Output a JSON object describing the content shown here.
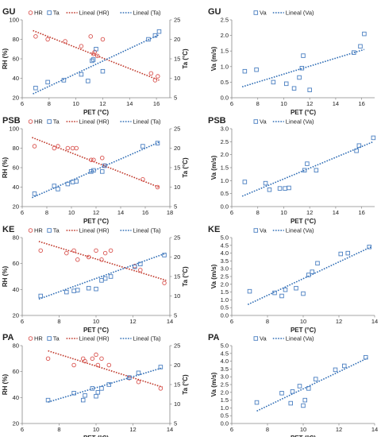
{
  "colors": {
    "hr": "#d9534f",
    "ta": "#4a7fc1",
    "va": "#4a7fc1",
    "trend": "#2f6db5",
    "hr_trend": "#c0392b"
  },
  "chart_data": [
    {
      "type": "scatter",
      "panel": "GU-left",
      "title": "GU",
      "xlabel": "PET (°C)",
      "ylabel": "RH (%)",
      "y2label": "Ta (°C)",
      "xlim": [
        6,
        17
      ],
      "ylim": [
        20,
        100
      ],
      "y2lim": [
        5,
        25
      ],
      "xticks": [
        6,
        8,
        10,
        12,
        14,
        16
      ],
      "yticks": [
        20,
        40,
        60,
        80,
        100
      ],
      "y2ticks": [
        5,
        10,
        15,
        20,
        25
      ],
      "legend": [
        "HR",
        "Ta",
        "Lineal (HR)",
        "Lineal (Ta)"
      ],
      "series": [
        {
          "name": "HR",
          "axis": "left",
          "marker": "circle",
          "x": [
            7.0,
            7.9,
            9.2,
            10.4,
            11.1,
            11.3,
            11.4,
            11.6,
            12.0,
            15.6,
            15.9,
            16.1
          ],
          "y": [
            83,
            80,
            78,
            73,
            83,
            65,
            67,
            63,
            80,
            45,
            38,
            42
          ]
        },
        {
          "name": "Ta",
          "axis": "right",
          "marker": "square",
          "x": [
            7.0,
            7.9,
            9.1,
            10.4,
            10.9,
            11.2,
            11.3,
            11.5,
            12.0,
            15.4,
            15.9,
            16.2
          ],
          "y": [
            7.5,
            9.0,
            9.5,
            11.0,
            9.3,
            14.5,
            14.8,
            17.5,
            11.8,
            20.0,
            21.0,
            22.0
          ]
        }
      ],
      "trends": [
        {
          "name": "Lineal (HR)",
          "axis": "left",
          "x": [
            6.8,
            16.2
          ],
          "y": [
            89,
            38
          ]
        },
        {
          "name": "Lineal (Ta)",
          "axis": "right",
          "x": [
            6.8,
            16.2
          ],
          "y": [
            6.0,
            21.2
          ]
        }
      ]
    },
    {
      "type": "scatter",
      "panel": "GU-right",
      "title": "GU",
      "xlabel": "PET (°C)",
      "ylabel": "Va (m/s)",
      "xlim": [
        6,
        17
      ],
      "ylim": [
        0,
        2.5
      ],
      "xticks": [
        6,
        8,
        10,
        12,
        14,
        16
      ],
      "yticks": [
        0.0,
        0.5,
        1.0,
        1.5,
        2.0,
        2.5
      ],
      "legend": [
        "Va",
        "Lineal (Va)"
      ],
      "series": [
        {
          "name": "Va",
          "axis": "left",
          "marker": "square",
          "x": [
            7.0,
            7.9,
            9.2,
            10.2,
            10.8,
            11.2,
            11.4,
            11.5,
            12.0,
            15.4,
            15.9,
            16.2
          ],
          "y": [
            0.85,
            0.9,
            0.5,
            0.45,
            0.3,
            0.65,
            0.95,
            1.35,
            0.25,
            1.45,
            1.65,
            2.05
          ]
        }
      ],
      "trends": [
        {
          "name": "Lineal (Va)",
          "axis": "left",
          "x": [
            6.8,
            16.2
          ],
          "y": [
            0.35,
            1.55
          ]
        }
      ]
    },
    {
      "type": "scatter",
      "panel": "PSB-left",
      "title": "PSB",
      "xlabel": "PET (°C)",
      "ylabel": "RH (%)",
      "y2label": "Ta (°C)",
      "xlim": [
        6,
        18
      ],
      "ylim": [
        20,
        100
      ],
      "y2lim": [
        5,
        25
      ],
      "xticks": [
        6,
        8,
        10,
        12,
        14,
        16,
        18
      ],
      "yticks": [
        20,
        40,
        60,
        80,
        100
      ],
      "y2ticks": [
        5,
        10,
        15,
        20,
        25
      ],
      "legend": [
        "HR",
        "Ta",
        "Lineal (HR)",
        "Lineal (Ta)"
      ],
      "series": [
        {
          "name": "HR",
          "axis": "left",
          "marker": "circle",
          "x": [
            7.0,
            8.6,
            8.9,
            9.7,
            10.1,
            10.4,
            11.6,
            11.8,
            12.5,
            12.7,
            15.8,
            17.0
          ],
          "y": [
            82,
            80,
            82,
            80,
            80,
            80,
            68,
            68,
            70,
            62,
            48,
            40
          ]
        },
        {
          "name": "Ta",
          "axis": "right",
          "marker": "square",
          "x": [
            7.0,
            8.6,
            8.9,
            9.7,
            10.1,
            10.4,
            11.6,
            11.8,
            12.5,
            12.7,
            15.8,
            17.0
          ],
          "y": [
            8.3,
            10.3,
            9.5,
            10.8,
            11.3,
            11.5,
            14.0,
            14.3,
            14.0,
            15.5,
            20.5,
            21.3
          ]
        }
      ],
      "trends": [
        {
          "name": "Lineal (HR)",
          "axis": "left",
          "x": [
            6.8,
            17.1
          ],
          "y": [
            91,
            40
          ]
        },
        {
          "name": "Lineal (Ta)",
          "axis": "right",
          "x": [
            6.8,
            17.1
          ],
          "y": [
            7.3,
            21.5
          ]
        }
      ]
    },
    {
      "type": "scatter",
      "panel": "PSB-right",
      "title": "PSB",
      "xlabel": "PET (°C)",
      "ylabel": "Va (m/s)",
      "xlim": [
        6,
        17
      ],
      "ylim": [
        0,
        3.0
      ],
      "xticks": [
        6,
        8,
        10,
        12,
        14,
        16
      ],
      "yticks": [
        0.0,
        0.5,
        1.0,
        1.5,
        2.0,
        2.5,
        3.0
      ],
      "legend": [
        "Va",
        "Lineal (Va)"
      ],
      "series": [
        {
          "name": "Va",
          "axis": "left",
          "marker": "square",
          "x": [
            7.0,
            8.6,
            8.9,
            9.7,
            10.1,
            10.4,
            11.6,
            11.8,
            12.5,
            15.6,
            15.8,
            16.9
          ],
          "y": [
            0.95,
            0.9,
            0.65,
            0.7,
            0.7,
            0.72,
            1.4,
            1.65,
            1.4,
            2.15,
            2.35,
            2.65
          ]
        }
      ],
      "trends": [
        {
          "name": "Lineal (Va)",
          "axis": "left",
          "x": [
            6.8,
            16.9
          ],
          "y": [
            0.4,
            2.5
          ]
        }
      ]
    },
    {
      "type": "scatter",
      "panel": "KE-left",
      "title": "KE",
      "xlabel": "PET (°C)",
      "ylabel": "RH (%)",
      "y2label": "Ta (°C)",
      "xlim": [
        6,
        14
      ],
      "ylim": [
        20,
        80
      ],
      "y2lim": [
        5,
        25
      ],
      "xticks": [
        6,
        8,
        10,
        12,
        14
      ],
      "yticks": [
        20,
        40,
        60,
        80
      ],
      "y2ticks": [
        5,
        10,
        15,
        20,
        25
      ],
      "legend": [
        "HR",
        "Ta",
        "Lineal (HR)",
        "Lineal (Ta)"
      ],
      "series": [
        {
          "name": "HR",
          "axis": "left",
          "marker": "circle",
          "x": [
            7.0,
            8.4,
            8.8,
            9.0,
            9.6,
            10.0,
            10.3,
            10.5,
            10.8,
            12.1,
            12.4,
            13.7
          ],
          "y": [
            70,
            68,
            70,
            63,
            65,
            70,
            63,
            68,
            70,
            58,
            55,
            45
          ]
        },
        {
          "name": "Ta",
          "axis": "right",
          "marker": "square",
          "x": [
            7.0,
            8.4,
            8.8,
            9.0,
            9.6,
            10.0,
            10.3,
            10.5,
            10.8,
            12.1,
            12.4,
            13.7
          ],
          "y": [
            10.0,
            11.0,
            11.3,
            11.5,
            12.0,
            11.8,
            14.0,
            14.5,
            15.0,
            17.5,
            18.2,
            20.5
          ]
        }
      ],
      "trends": [
        {
          "name": "Lineal (HR)",
          "axis": "left",
          "x": [
            6.9,
            13.8
          ],
          "y": [
            77,
            47
          ]
        },
        {
          "name": "Lineal (Ta)",
          "axis": "right",
          "x": [
            6.9,
            13.8
          ],
          "y": [
            9.2,
            21.0
          ]
        }
      ]
    },
    {
      "type": "scatter",
      "panel": "KE-right",
      "title": "KE",
      "xlabel": "PET (°C)",
      "ylabel": "Va (m/s)",
      "xlim": [
        6,
        14
      ],
      "ylim": [
        0,
        5.0
      ],
      "xticks": [
        6,
        8,
        10,
        12,
        14
      ],
      "yticks": [
        0.0,
        0.5,
        1.0,
        1.5,
        2.0,
        2.5,
        3.0,
        3.5,
        4.0,
        4.5,
        5.0
      ],
      "legend": [
        "Va",
        "Lineal (Va)"
      ],
      "series": [
        {
          "name": "Va",
          "axis": "left",
          "marker": "square",
          "x": [
            7.0,
            8.4,
            8.8,
            9.0,
            9.6,
            10.0,
            10.3,
            10.5,
            10.8,
            12.1,
            12.5,
            13.7
          ],
          "y": [
            1.55,
            1.45,
            1.25,
            1.65,
            1.75,
            1.4,
            2.6,
            2.8,
            3.35,
            3.95,
            4.0,
            4.4
          ]
        }
      ],
      "trends": [
        {
          "name": "Lineal (Va)",
          "axis": "left",
          "x": [
            6.9,
            13.8
          ],
          "y": [
            0.7,
            4.4
          ]
        }
      ]
    },
    {
      "type": "scatter",
      "panel": "PA-left",
      "title": "PA",
      "xlabel": "PET (°C)",
      "ylabel": "RH (%)",
      "y2label": "Ta (°C)",
      "xlim": [
        6,
        14
      ],
      "ylim": [
        20,
        80
      ],
      "y2lim": [
        5,
        25
      ],
      "xticks": [
        6,
        8,
        10,
        12,
        14
      ],
      "yticks": [
        20,
        40,
        60,
        80
      ],
      "y2ticks": [
        5,
        10,
        15,
        20,
        25
      ],
      "legend": [
        "HR",
        "Ta",
        "Lineal (HR)",
        "Lineal (Ta)"
      ],
      "series": [
        {
          "name": "HR",
          "axis": "left",
          "marker": "circle",
          "x": [
            7.4,
            8.8,
            9.3,
            9.4,
            9.8,
            10.0,
            10.1,
            10.3,
            10.7,
            11.8,
            12.3,
            13.5
          ],
          "y": [
            70,
            65,
            70,
            68,
            70,
            73,
            65,
            70,
            65,
            55,
            52,
            47
          ]
        },
        {
          "name": "Ta",
          "axis": "right",
          "marker": "square",
          "x": [
            7.4,
            8.8,
            9.3,
            9.4,
            9.8,
            10.0,
            10.1,
            10.3,
            10.7,
            11.8,
            12.3,
            13.5
          ],
          "y": [
            11.0,
            12.8,
            11.0,
            12.2,
            14.0,
            12.0,
            13.0,
            14.0,
            15.0,
            16.8,
            18.0,
            19.5
          ]
        }
      ],
      "trends": [
        {
          "name": "Lineal (HR)",
          "axis": "left",
          "x": [
            7.4,
            13.6
          ],
          "y": [
            76,
            48
          ]
        },
        {
          "name": "Lineal (Ta)",
          "axis": "right",
          "x": [
            7.4,
            13.6
          ],
          "y": [
            10.5,
            19.3
          ]
        }
      ]
    },
    {
      "type": "scatter",
      "panel": "PA-right",
      "title": "PA",
      "xlabel": "PET (°C)",
      "ylabel": "Va (m/s)",
      "xlim": [
        6,
        14
      ],
      "ylim": [
        0,
        5.0
      ],
      "xticks": [
        6,
        8,
        10,
        12,
        14
      ],
      "yticks": [
        0.0,
        0.5,
        1.0,
        1.5,
        2.0,
        2.5,
        3.0,
        3.5,
        4.0,
        4.5,
        5.0
      ],
      "legend": [
        "Va",
        "Lineal (Va)"
      ],
      "series": [
        {
          "name": "Va",
          "axis": "left",
          "marker": "square",
          "x": [
            7.4,
            8.8,
            9.3,
            9.4,
            9.8,
            10.0,
            10.1,
            10.3,
            10.7,
            11.8,
            12.3,
            13.5
          ],
          "y": [
            1.35,
            1.95,
            1.3,
            2.05,
            2.4,
            1.15,
            1.5,
            2.25,
            2.85,
            3.45,
            3.7,
            4.25
          ]
        }
      ],
      "trends": [
        {
          "name": "Lineal (Va)",
          "axis": "left",
          "x": [
            7.4,
            13.6
          ],
          "y": [
            0.8,
            4.2
          ]
        }
      ]
    }
  ]
}
